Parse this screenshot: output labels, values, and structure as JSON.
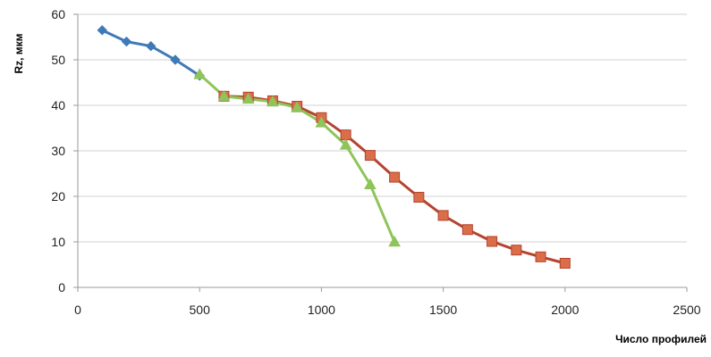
{
  "chart_data": {
    "type": "line",
    "title": "",
    "xlabel": "Число профилей",
    "ylabel": "Rz, мкм",
    "xlim": [
      0,
      2500
    ],
    "ylim": [
      0,
      60
    ],
    "x_ticks": [
      0,
      500,
      1000,
      1500,
      2000,
      2500
    ],
    "y_ticks": [
      0,
      10,
      20,
      30,
      40,
      50,
      60
    ],
    "grid": "horizontal",
    "legend": "none",
    "series": [
      {
        "color": "#3f7ab8",
        "marker": "diamond",
        "points": [
          [
            100,
            56.5
          ],
          [
            200,
            54
          ],
          [
            300,
            53
          ],
          [
            400,
            50
          ],
          [
            500,
            46.5
          ]
        ]
      },
      {
        "color": "#b5432f",
        "marker_fill": "#d96e48",
        "marker": "square",
        "points": [
          [
            600,
            42
          ],
          [
            700,
            41.8
          ],
          [
            800,
            41
          ],
          [
            900,
            39.8
          ],
          [
            1000,
            37.3
          ],
          [
            1100,
            33.5
          ],
          [
            1200,
            29
          ],
          [
            1300,
            24.2
          ],
          [
            1400,
            19.8
          ],
          [
            1500,
            15.8
          ],
          [
            1600,
            12.7
          ],
          [
            1700,
            10.1
          ],
          [
            1800,
            8.2
          ],
          [
            1900,
            6.7
          ],
          [
            2000,
            5.3
          ]
        ]
      },
      {
        "color": "#8fc45a",
        "marker": "triangle",
        "points": [
          [
            500,
            46.8
          ],
          [
            600,
            42
          ],
          [
            700,
            41.4
          ],
          [
            800,
            40.8
          ],
          [
            900,
            39.5
          ],
          [
            1000,
            36.2
          ],
          [
            1100,
            31.3
          ],
          [
            1200,
            22.6
          ],
          [
            1300,
            10
          ]
        ]
      }
    ]
  }
}
